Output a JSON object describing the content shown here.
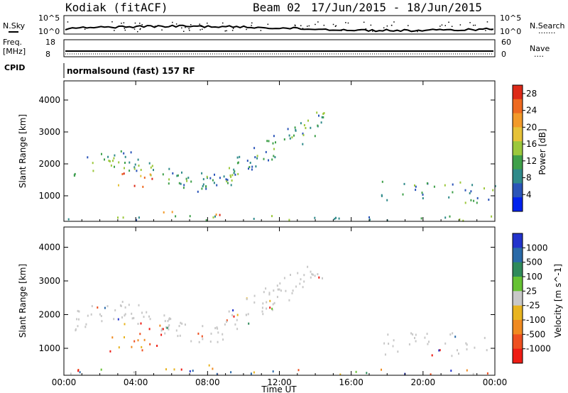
{
  "header": {
    "station": "Kodiak (fitACF)",
    "beam": "Beam 02",
    "date_range": "17/Jun/2015 - 18/Jun/2015"
  },
  "panels": {
    "nsky": {
      "left_label": "N.Sky",
      "ticks": [
        "10^5",
        "10^0"
      ],
      "right_ticks": [
        "10^5",
        "10^0"
      ],
      "right_label": "N.Search",
      "right_marker": "......."
    },
    "freq": {
      "left_label_1": "Freq.",
      "left_label_2": "[MHz]",
      "ticks": [
        "18",
        "8"
      ],
      "right_ticks": [
        "60",
        "0"
      ],
      "right_label": "Nave",
      "right_marker": "...."
    },
    "cpid": {
      "left_label": "CPID",
      "text": "normalsound (fast) 157 RF"
    }
  },
  "chart_data": [
    {
      "type": "heatmap",
      "name": "power",
      "ylabel": "Slant Range [km]",
      "ylim": [
        200,
        4600
      ],
      "xlim_hours": [
        0,
        24
      ],
      "y_ticks": [
        "1000",
        "2000",
        "3000",
        "4000"
      ],
      "x_ticks": [
        "00:00",
        "04:00",
        "08:00",
        "12:00",
        "16:00",
        "20:00",
        "00:00"
      ],
      "colorbar": {
        "label": "Power [dB]",
        "range": [
          0,
          30
        ],
        "tick_labels": [
          "4",
          "8",
          "12",
          "16",
          "20",
          "24",
          "28"
        ],
        "colors": [
          "#0022ee",
          "#2a54b8",
          "#2f8a8a",
          "#3fa04a",
          "#9cc83c",
          "#e6c238",
          "#f29a2a",
          "#ee6a20",
          "#dd2a18"
        ]
      },
      "features": [
        {
          "t": [
            0.5,
            9.5
          ],
          "r": [
            1200,
            2400
          ],
          "level": "12-24 dB"
        },
        {
          "t": [
            2.5,
            5.0
          ],
          "r": [
            1300,
            1800
          ],
          "level": "20-28 dB"
        },
        {
          "t": [
            9.0,
            14.5
          ],
          "r": [
            1800,
            3400
          ],
          "level": "8-16 dB"
        },
        {
          "t": [
            5.5,
            9.0
          ],
          "r": [
            400,
            550
          ],
          "level": "20-28 dB"
        },
        {
          "t": [
            17.5,
            24.0
          ],
          "r": [
            800,
            1500
          ],
          "level": "4-12 dB"
        },
        {
          "t": [
            0.0,
            24.0
          ],
          "r": [
            250,
            400
          ],
          "level": "4-20 dB"
        }
      ]
    },
    {
      "type": "heatmap",
      "name": "velocity",
      "ylabel": "Slant Range [km]",
      "ylim": [
        200,
        4600
      ],
      "xlim_hours": [
        0,
        24
      ],
      "y_ticks": [
        "1000",
        "2000",
        "3000",
        "4000"
      ],
      "x_ticks": [
        "00:00",
        "04:00",
        "08:00",
        "12:00",
        "16:00",
        "20:00",
        "00:00"
      ],
      "xlabel": "Time UT",
      "colorbar": {
        "label": "Velocity [m s^-1]",
        "tick_labels": [
          "1000",
          "500",
          "100",
          "25",
          "-25",
          "-100",
          "-500",
          "-1000"
        ],
        "colors": [
          "#2233cc",
          "#2a6aa8",
          "#2f8a5a",
          "#66c233",
          "#c8c8c8",
          "#e8b420",
          "#f08a20",
          "#ee5020",
          "#ee1c14"
        ]
      },
      "features": [
        {
          "t": [
            0.5,
            9.5
          ],
          "r": [
            1200,
            2400
          ],
          "level": "ground scatter ±25"
        },
        {
          "t": [
            2.5,
            5.5
          ],
          "r": [
            900,
            1800
          ],
          "level": "-100 to -1000"
        },
        {
          "t": [
            9.0,
            14.5
          ],
          "r": [
            1800,
            3400
          ],
          "level": "ground scatter ±25"
        },
        {
          "t": [
            17.5,
            24.0
          ],
          "r": [
            800,
            1500
          ],
          "level": "ground scatter ±25"
        },
        {
          "t": [
            5.5,
            9.0
          ],
          "r": [
            400,
            550
          ],
          "level": "-100"
        },
        {
          "t": [
            0.0,
            24.0
          ],
          "r": [
            250,
            400
          ],
          "level": "mixed"
        }
      ]
    }
  ]
}
